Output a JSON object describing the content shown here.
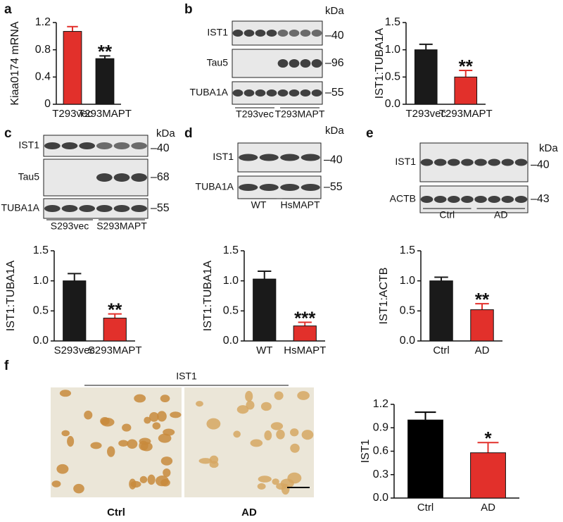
{
  "chart_data": [
    {
      "type": "bar",
      "ylabel": "Kiaa0174 mRNA",
      "categories": [
        "T293vec",
        "T293MAPT"
      ],
      "values": [
        1.07,
        0.67
      ],
      "errors": [
        0.07,
        0.04
      ],
      "colors": [
        "#e2302b",
        "#1a1a1a"
      ],
      "ylim": [
        0,
        1.2
      ],
      "yticks": [
        0,
        0.4,
        0.8,
        1.2
      ],
      "annotation": "**"
    },
    {
      "type": "bar",
      "ylabel": "IST1:TUBA1A",
      "categories": [
        "T293vec",
        "T293MAPT"
      ],
      "values": [
        1.0,
        0.5
      ],
      "errors": [
        0.1,
        0.12
      ],
      "colors": [
        "#1a1a1a",
        "#e2302b"
      ],
      "ylim": [
        0,
        1.5
      ],
      "yticks": [
        {
          "value": 0,
          "label": "0.0"
        },
        0.5,
        {
          "value": 1,
          "label": "1.0"
        },
        1.5
      ],
      "annotation": "**"
    },
    {
      "type": "bar",
      "ylabel": "IST1:TUBA1A",
      "categories": [
        "S293vec",
        "S293MAPT"
      ],
      "values": [
        1.0,
        0.38
      ],
      "errors": [
        0.12,
        0.07
      ],
      "colors": [
        "#1a1a1a",
        "#e2302b"
      ],
      "ylim": [
        0,
        1.5
      ],
      "yticks": [
        {
          "value": 0,
          "label": "0.0"
        },
        0.5,
        {
          "value": 1,
          "label": "1.0"
        },
        1.5
      ],
      "annotation": "**"
    },
    {
      "type": "bar",
      "ylabel": "IST1:TUBA1A",
      "categories": [
        "WT",
        "HsMAPT"
      ],
      "values": [
        1.03,
        0.25
      ],
      "errors": [
        0.13,
        0.06
      ],
      "colors": [
        "#1a1a1a",
        "#e2302b"
      ],
      "ylim": [
        0,
        1.5
      ],
      "yticks": [
        {
          "value": 0,
          "label": "0.0"
        },
        0.5,
        {
          "value": 1,
          "label": "1.0"
        },
        1.5
      ],
      "annotation": "***"
    },
    {
      "type": "bar",
      "ylabel": "IST1:ACTB",
      "categories": [
        "Ctrl",
        "AD"
      ],
      "values": [
        1.0,
        0.52
      ],
      "errors": [
        0.06,
        0.1
      ],
      "colors": [
        "#1a1a1a",
        "#e2302b"
      ],
      "ylim": [
        0,
        1.5
      ],
      "yticks": [
        {
          "value": 0,
          "label": "0.0"
        },
        0.5,
        {
          "value": 1,
          "label": "1.0"
        },
        1.5
      ],
      "annotation": "**"
    },
    {
      "type": "bar",
      "ylabel": "IST1",
      "categories": [
        "Ctrl",
        "AD"
      ],
      "values": [
        1.0,
        0.58
      ],
      "errors": [
        0.1,
        0.13
      ],
      "colors": [
        "#000000",
        "#e2302b"
      ],
      "ylim": [
        0,
        1.2
      ],
      "yticks": [
        {
          "value": 0,
          "label": "0.0"
        },
        0.3,
        0.6,
        0.9,
        1.2
      ],
      "annotation": "*"
    }
  ],
  "panels": {
    "letters": [
      "a",
      "b",
      "c",
      "d",
      "e",
      "f"
    ],
    "blots": [
      {
        "rows": [
          "IST1",
          "Tau5",
          "TUBA1A"
        ],
        "unit": "kDa",
        "markers": [
          "–40",
          "–96",
          "–55"
        ],
        "groups": [
          "T293vec",
          "T293MAPT"
        ]
      },
      {
        "rows": [
          "IST1",
          "Tau5",
          "TUBA1A"
        ],
        "unit": "kDa",
        "markers": [
          "–40",
          "–68",
          "–55"
        ],
        "groups": [
          "S293vec",
          "S293MAPT"
        ]
      },
      {
        "rows": [
          "IST1",
          "TUBA1A"
        ],
        "unit": "kDa",
        "markers": [
          "–40",
          "–55"
        ],
        "groups": [
          "WT",
          "HsMAPT"
        ]
      },
      {
        "rows": [
          "IST1",
          "ACTB"
        ],
        "unit": "kDa",
        "markers": [
          "–40",
          "–43"
        ],
        "groups": [
          "Ctrl",
          "AD"
        ]
      }
    ],
    "images": {
      "title": "IST1",
      "captions": [
        "Ctrl",
        "AD"
      ]
    }
  }
}
